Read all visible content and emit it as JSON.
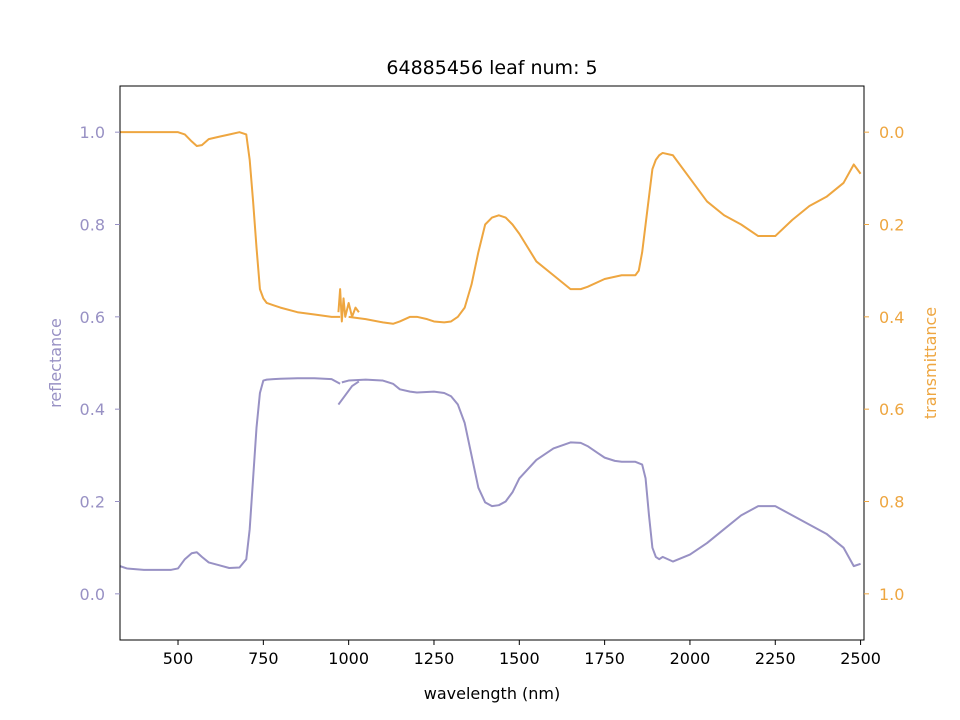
{
  "chart_data": {
    "type": "line",
    "title": "64885456 leaf num: 5",
    "xlabel": "wavelength (nm)",
    "ylabel_left": "reflectance",
    "ylabel_right": "transmittance",
    "xlim": [
      330,
      2510
    ],
    "ylim_left": [
      -0.1,
      1.1
    ],
    "ylim_right": [
      1.1,
      -0.1
    ],
    "xticks": [
      500,
      750,
      1000,
      1250,
      1500,
      1750,
      2000,
      2250,
      2500
    ],
    "yticks_left": [
      0.0,
      0.2,
      0.4,
      0.6,
      0.8,
      1.0
    ],
    "yticks_right": [
      1.0,
      0.8,
      0.6,
      0.4,
      0.2,
      0.0
    ],
    "grid": false,
    "colors": {
      "reflectance": "#9891c4",
      "transmittance": "#eea640",
      "left_axis_text": "#9891c4",
      "right_axis_text": "#eea640"
    },
    "series": [
      {
        "axis": "left",
        "color": "#9891c4",
        "segments": [
          {
            "x": [
              330,
              350,
              400,
              450,
              480,
              500,
              520,
              540,
              555,
              570,
              590,
              620,
              650,
              680,
              700,
              710,
              720,
              730,
              740,
              750,
              760,
              780,
              800,
              850,
              900,
              950,
              975
            ],
            "y": [
              0.06,
              0.055,
              0.052,
              0.052,
              0.052,
              0.055,
              0.075,
              0.088,
              0.09,
              0.08,
              0.068,
              0.062,
              0.056,
              0.057,
              0.075,
              0.14,
              0.25,
              0.36,
              0.435,
              0.462,
              0.464,
              0.465,
              0.466,
              0.467,
              0.467,
              0.465,
              0.455
            ]
          },
          {
            "x": [
              970,
              990,
              1010,
              1030
            ],
            "y": [
              0.41,
              0.43,
              0.45,
              0.46
            ]
          },
          {
            "x": [
              980,
              1000,
              1050,
              1100,
              1130,
              1150,
              1180,
              1200,
              1250,
              1280,
              1300,
              1320,
              1340,
              1360,
              1380,
              1400,
              1420,
              1440,
              1460,
              1480,
              1500,
              1550,
              1600,
              1650,
              1680,
              1700,
              1730,
              1750,
              1780,
              1800,
              1840,
              1860,
              1870,
              1880,
              1890,
              1900,
              1910,
              1920,
              1950,
              2000,
              2050,
              2100,
              2150,
              2200,
              2250,
              2300,
              2350,
              2400,
              2450,
              2480,
              2500
            ],
            "y": [
              0.458,
              0.462,
              0.464,
              0.462,
              0.455,
              0.443,
              0.438,
              0.436,
              0.438,
              0.435,
              0.428,
              0.41,
              0.37,
              0.3,
              0.23,
              0.198,
              0.19,
              0.192,
              0.2,
              0.22,
              0.25,
              0.29,
              0.315,
              0.328,
              0.327,
              0.32,
              0.305,
              0.295,
              0.288,
              0.286,
              0.286,
              0.28,
              0.25,
              0.17,
              0.1,
              0.08,
              0.075,
              0.08,
              0.07,
              0.085,
              0.11,
              0.14,
              0.17,
              0.19,
              0.19,
              0.17,
              0.15,
              0.13,
              0.1,
              0.06,
              0.065
            ]
          }
        ]
      },
      {
        "axis": "right",
        "color": "#eea640",
        "segments": [
          {
            "x": [
              330,
              350,
              400,
              450,
              500,
              520,
              540,
              555,
              570,
              590,
              620,
              650,
              680,
              700,
              710,
              720,
              730,
              740,
              750,
              760,
              780,
              800,
              850,
              900,
              950,
              975
            ],
            "y": [
              0.0,
              0.0,
              0.0,
              0.0,
              0.0,
              0.005,
              0.02,
              0.03,
              0.028,
              0.015,
              0.01,
              0.005,
              0.0,
              0.005,
              0.06,
              0.15,
              0.25,
              0.34,
              0.36,
              0.37,
              0.375,
              0.38,
              0.39,
              0.395,
              0.4,
              0.4
            ]
          },
          {
            "x": [
              970,
              975,
              980,
              985,
              990,
              1000,
              1010,
              1020,
              1030
            ],
            "y": [
              0.39,
              0.34,
              0.41,
              0.36,
              0.4,
              0.37,
              0.4,
              0.38,
              0.39
            ]
          },
          {
            "x": [
              1000,
              1050,
              1100,
              1130,
              1150,
              1180,
              1200,
              1230,
              1250,
              1280,
              1300,
              1320,
              1340,
              1360,
              1380,
              1400,
              1420,
              1440,
              1460,
              1480,
              1500,
              1550,
              1600,
              1650,
              1680,
              1700,
              1750,
              1800,
              1840,
              1850,
              1860,
              1870,
              1880,
              1890,
              1900,
              1910,
              1920,
              1950,
              2000,
              2050,
              2100,
              2150,
              2200,
              2250,
              2300,
              2350,
              2400,
              2450,
              2480,
              2500
            ],
            "y": [
              0.4,
              0.405,
              0.412,
              0.415,
              0.41,
              0.4,
              0.4,
              0.405,
              0.41,
              0.412,
              0.41,
              0.4,
              0.38,
              0.33,
              0.26,
              0.2,
              0.185,
              0.18,
              0.185,
              0.2,
              0.22,
              0.28,
              0.31,
              0.34,
              0.34,
              0.335,
              0.318,
              0.31,
              0.31,
              0.3,
              0.26,
              0.2,
              0.14,
              0.08,
              0.06,
              0.05,
              0.045,
              0.05,
              0.1,
              0.15,
              0.18,
              0.2,
              0.225,
              0.225,
              0.19,
              0.16,
              0.14,
              0.11,
              0.07,
              0.09
            ]
          }
        ]
      }
    ]
  }
}
